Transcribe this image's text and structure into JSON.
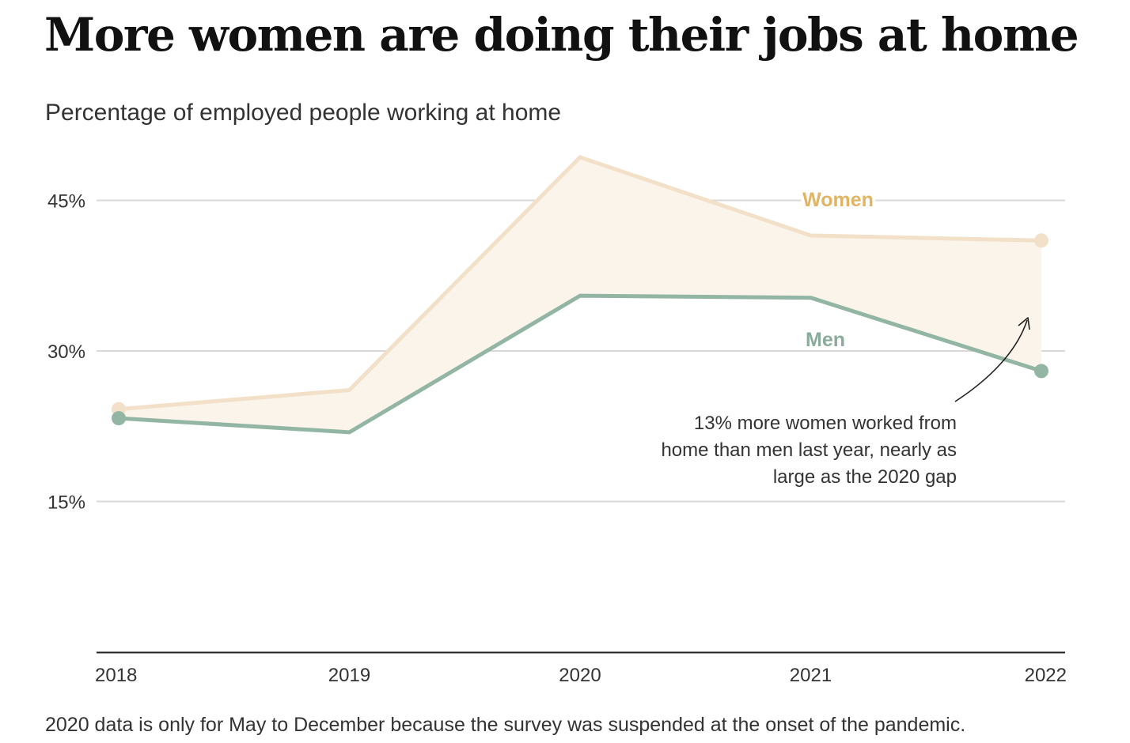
{
  "title": "More women are doing their jobs at home",
  "subtitle": "Percentage of employed people working at home",
  "footnote": "2020 data is only for May to December because the survey was suspended at the onset of the pandemic.",
  "colors": {
    "women": "#f2e0c8",
    "women_label": "#e0b463",
    "men": "#93b5a4",
    "men_label": "#8bac9c",
    "gap_fill": "#faf4ea",
    "grid": "#d9d9d9",
    "axis": "#222222"
  },
  "chart_data": {
    "type": "line",
    "x": [
      "2018",
      "2019",
      "2020",
      "2021",
      "2022"
    ],
    "ylim": [
      0,
      50
    ],
    "yticks": [
      {
        "value": 15,
        "label": "15%"
      },
      {
        "value": 30,
        "label": "30%"
      },
      {
        "value": 45,
        "label": "45%"
      }
    ],
    "grid": true,
    "series": [
      {
        "name": "Women",
        "values": [
          24.2,
          26.1,
          49.3,
          41.5,
          41.0
        ]
      },
      {
        "name": "Men",
        "values": [
          23.3,
          21.9,
          35.5,
          35.3,
          28.0
        ]
      }
    ],
    "annotation": {
      "lines": [
        "13% more women worked from",
        "home than men last year, nearly as",
        "large as the 2020 gap"
      ]
    }
  }
}
